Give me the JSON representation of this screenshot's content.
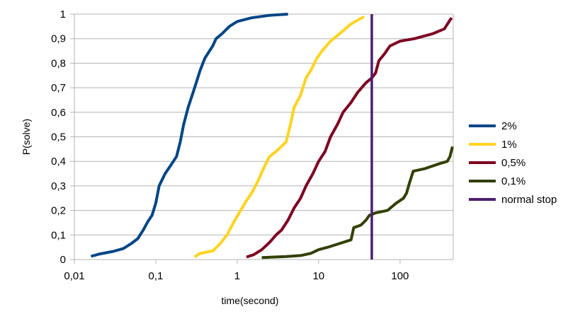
{
  "chart_data": {
    "type": "line",
    "xlabel": "time(second)",
    "ylabel": "P(solve)",
    "x_scale": "log",
    "xlim": [
      0.01,
      450
    ],
    "ylim": [
      0,
      1
    ],
    "x_ticks": [
      {
        "value": 0.01,
        "label": "0,01"
      },
      {
        "value": 0.1,
        "label": "0,1"
      },
      {
        "value": 1,
        "label": "1"
      },
      {
        "value": 10,
        "label": "10"
      },
      {
        "value": 100,
        "label": "100"
      }
    ],
    "y_ticks": [
      {
        "value": 0,
        "label": "0"
      },
      {
        "value": 0.1,
        "label": "0,1"
      },
      {
        "value": 0.2,
        "label": "0,2"
      },
      {
        "value": 0.3,
        "label": "0,3"
      },
      {
        "value": 0.4,
        "label": "0,4"
      },
      {
        "value": 0.5,
        "label": "0,5"
      },
      {
        "value": 0.6,
        "label": "0,6"
      },
      {
        "value": 0.7,
        "label": "0,7"
      },
      {
        "value": 0.8,
        "label": "0,8"
      },
      {
        "value": 0.9,
        "label": "0,9"
      },
      {
        "value": 1,
        "label": "1"
      }
    ],
    "grid": "horizontal",
    "legend_position": "right",
    "series": [
      {
        "name": "2%",
        "color": "#004586",
        "points": [
          [
            0.016,
            0.013
          ],
          [
            0.02,
            0.022
          ],
          [
            0.03,
            0.033
          ],
          [
            0.04,
            0.045
          ],
          [
            0.05,
            0.065
          ],
          [
            0.06,
            0.085
          ],
          [
            0.07,
            0.12
          ],
          [
            0.08,
            0.155
          ],
          [
            0.09,
            0.18
          ],
          [
            0.1,
            0.23
          ],
          [
            0.11,
            0.3
          ],
          [
            0.13,
            0.35
          ],
          [
            0.15,
            0.38
          ],
          [
            0.18,
            0.42
          ],
          [
            0.2,
            0.48
          ],
          [
            0.22,
            0.55
          ],
          [
            0.25,
            0.62
          ],
          [
            0.3,
            0.7
          ],
          [
            0.35,
            0.77
          ],
          [
            0.4,
            0.82
          ],
          [
            0.5,
            0.87
          ],
          [
            0.55,
            0.9
          ],
          [
            0.65,
            0.92
          ],
          [
            0.8,
            0.95
          ],
          [
            1.0,
            0.97
          ],
          [
            1.5,
            0.985
          ],
          [
            2.5,
            0.995
          ],
          [
            4.2,
            1.0
          ]
        ]
      },
      {
        "name": "1%",
        "color": "#ffd320",
        "points": [
          [
            0.3,
            0.01
          ],
          [
            0.35,
            0.025
          ],
          [
            0.5,
            0.035
          ],
          [
            0.6,
            0.06
          ],
          [
            0.75,
            0.1
          ],
          [
            0.9,
            0.15
          ],
          [
            1.1,
            0.2
          ],
          [
            1.3,
            0.24
          ],
          [
            1.5,
            0.27
          ],
          [
            1.8,
            0.32
          ],
          [
            2.1,
            0.37
          ],
          [
            2.5,
            0.42
          ],
          [
            3.0,
            0.44
          ],
          [
            4.0,
            0.48
          ],
          [
            4.5,
            0.55
          ],
          [
            5.0,
            0.62
          ],
          [
            6.0,
            0.67
          ],
          [
            7.0,
            0.74
          ],
          [
            8.0,
            0.77
          ],
          [
            9.5,
            0.82
          ],
          [
            11,
            0.85
          ],
          [
            14,
            0.89
          ],
          [
            18,
            0.92
          ],
          [
            25,
            0.96
          ],
          [
            36,
            0.99
          ]
        ]
      },
      {
        "name": "0,5%",
        "color": "#7e0021",
        "points": [
          [
            1.3,
            0.01
          ],
          [
            1.6,
            0.02
          ],
          [
            2.0,
            0.04
          ],
          [
            2.5,
            0.07
          ],
          [
            3.0,
            0.1
          ],
          [
            3.5,
            0.12
          ],
          [
            4.2,
            0.16
          ],
          [
            5.0,
            0.21
          ],
          [
            6.0,
            0.25
          ],
          [
            7.0,
            0.3
          ],
          [
            8.5,
            0.35
          ],
          [
            10,
            0.4
          ],
          [
            12,
            0.44
          ],
          [
            14,
            0.5
          ],
          [
            17,
            0.55
          ],
          [
            20,
            0.6
          ],
          [
            25,
            0.64
          ],
          [
            30,
            0.68
          ],
          [
            38,
            0.72
          ],
          [
            45,
            0.74
          ],
          [
            50,
            0.76
          ],
          [
            55,
            0.81
          ],
          [
            65,
            0.84
          ],
          [
            75,
            0.87
          ],
          [
            100,
            0.89
          ],
          [
            150,
            0.9
          ],
          [
            250,
            0.92
          ],
          [
            350,
            0.94
          ],
          [
            400,
            0.97
          ],
          [
            430,
            0.985
          ]
        ]
      },
      {
        "name": "0,1%",
        "color": "#314004",
        "points": [
          [
            2.0,
            0.008
          ],
          [
            4.0,
            0.012
          ],
          [
            6.0,
            0.016
          ],
          [
            8.0,
            0.025
          ],
          [
            10,
            0.04
          ],
          [
            13,
            0.05
          ],
          [
            18,
            0.065
          ],
          [
            25,
            0.08
          ],
          [
            27,
            0.13
          ],
          [
            33,
            0.14
          ],
          [
            38,
            0.16
          ],
          [
            42,
            0.18
          ],
          [
            50,
            0.19
          ],
          [
            70,
            0.2
          ],
          [
            90,
            0.23
          ],
          [
            110,
            0.25
          ],
          [
            120,
            0.27
          ],
          [
            130,
            0.31
          ],
          [
            145,
            0.36
          ],
          [
            200,
            0.37
          ],
          [
            300,
            0.39
          ],
          [
            380,
            0.4
          ],
          [
            410,
            0.42
          ],
          [
            440,
            0.46
          ]
        ]
      },
      {
        "name": "normal stop",
        "color": "#4b1f6f",
        "points": [
          [
            45,
            0
          ],
          [
            45,
            1
          ]
        ]
      }
    ]
  }
}
